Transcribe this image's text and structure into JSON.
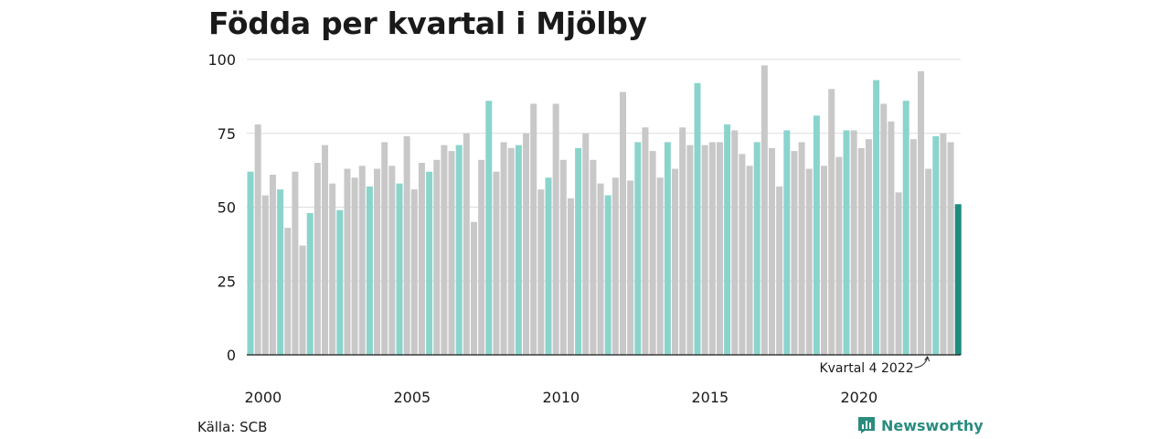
{
  "title": "Födda per kvartal i Mjölby",
  "source": "Källa: SCB",
  "brand": "Newsworthy",
  "colors": {
    "bar": "#c8c8c8",
    "bar_q1": "#8ad4cc",
    "bar_latest": "#1e8c7e",
    "grid": "#dddddd",
    "brand": "#2a8c7f"
  },
  "chart_data": {
    "type": "bar",
    "title": "Födda per kvartal i Mjölby",
    "xlabel": "",
    "ylabel": "",
    "ylim": [
      0,
      100
    ],
    "yticks": [
      0,
      25,
      50,
      75,
      100
    ],
    "xtick_labels": [
      {
        "label": "2000",
        "year": 2000
      },
      {
        "label": "2005",
        "year": 2005
      },
      {
        "label": "2010",
        "year": 2010
      },
      {
        "label": "2015",
        "year": 2015
      },
      {
        "label": "2020",
        "year": 2020
      }
    ],
    "start_year": 2000,
    "highlight_quarter": 1,
    "grid": true,
    "annotation": {
      "text": "Kvartal 4 2022",
      "year": 2022,
      "quarter": 4
    },
    "values": [
      62,
      78,
      54,
      61,
      56,
      43,
      62,
      37,
      48,
      65,
      71,
      58,
      49,
      63,
      60,
      64,
      57,
      63,
      72,
      64,
      58,
      74,
      56,
      65,
      62,
      66,
      71,
      69,
      71,
      75,
      45,
      66,
      86,
      62,
      72,
      70,
      71,
      75,
      85,
      56,
      60,
      85,
      66,
      53,
      70,
      75,
      66,
      58,
      54,
      60,
      89,
      59,
      72,
      77,
      69,
      60,
      72,
      63,
      77,
      71,
      92,
      71,
      72,
      72,
      78,
      76,
      68,
      64,
      72,
      98,
      70,
      57,
      76,
      69,
      72,
      63,
      81,
      64,
      90,
      67,
      76,
      76,
      70,
      73,
      93,
      85,
      79,
      55,
      86,
      73,
      96,
      63,
      74,
      75,
      72,
      51
    ]
  }
}
